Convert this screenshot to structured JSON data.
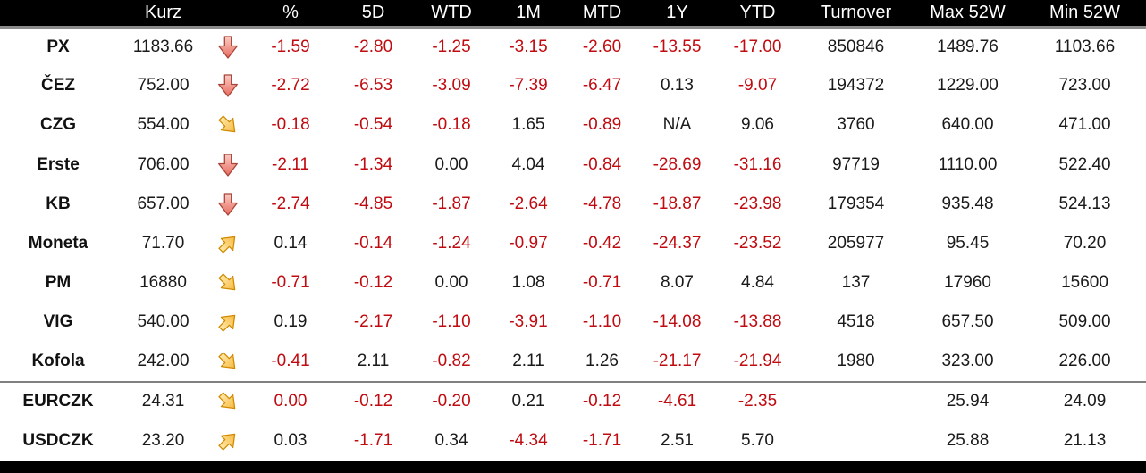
{
  "colors": {
    "negative_text": "#c00b10",
    "positive_text": "#1a1a1a",
    "header_bg": "#000000",
    "header_text": "#ffffff",
    "separator_gray": "#808080",
    "arrow_red_fill": "#ef7b6f",
    "arrow_red_stroke": "#a94438",
    "arrow_yellow_fill": "#f9c04f",
    "arrow_yellow_stroke": "#d08a00"
  },
  "chart_data": {
    "type": "table",
    "title": "Czech market quotes table",
    "columns": [
      "",
      "Kurz",
      "",
      "%",
      "5D",
      "WTD",
      "1M",
      "MTD",
      "1Y",
      "YTD",
      "Turnover",
      "Max 52W",
      "Min 52W"
    ],
    "value_keys": [
      "pct",
      "d5",
      "wtd",
      "m1",
      "mtd",
      "y1",
      "ytd",
      "turnover",
      "max52w",
      "min52w"
    ],
    "rows": [
      {
        "name": "PX",
        "kurz": "1183.66",
        "arrow": "down",
        "values": [
          {
            "v": "-1.59",
            "neg": true
          },
          {
            "v": "-2.80",
            "neg": true
          },
          {
            "v": "-1.25",
            "neg": true
          },
          {
            "v": "-3.15",
            "neg": true
          },
          {
            "v": "-2.60",
            "neg": true
          },
          {
            "v": "-13.55",
            "neg": true
          },
          {
            "v": "-17.00",
            "neg": true
          },
          {
            "v": "850846",
            "neg": false
          },
          {
            "v": "1489.76",
            "neg": false
          },
          {
            "v": "1103.66",
            "neg": false
          }
        ]
      },
      {
        "name": "ČEZ",
        "kurz": "752.00",
        "arrow": "down",
        "values": [
          {
            "v": "-2.72",
            "neg": true
          },
          {
            "v": "-6.53",
            "neg": true
          },
          {
            "v": "-3.09",
            "neg": true
          },
          {
            "v": "-7.39",
            "neg": true
          },
          {
            "v": "-6.47",
            "neg": true
          },
          {
            "v": "0.13",
            "neg": false
          },
          {
            "v": "-9.07",
            "neg": true
          },
          {
            "v": "194372",
            "neg": false
          },
          {
            "v": "1229.00",
            "neg": false
          },
          {
            "v": "723.00",
            "neg": false
          }
        ]
      },
      {
        "name": "CZG",
        "kurz": "554.00",
        "arrow": "down-right",
        "values": [
          {
            "v": "-0.18",
            "neg": true
          },
          {
            "v": "-0.54",
            "neg": true
          },
          {
            "v": "-0.18",
            "neg": true
          },
          {
            "v": "1.65",
            "neg": false
          },
          {
            "v": "-0.89",
            "neg": true
          },
          {
            "v": "N/A",
            "neg": false
          },
          {
            "v": "9.06",
            "neg": false
          },
          {
            "v": "3760",
            "neg": false
          },
          {
            "v": "640.00",
            "neg": false
          },
          {
            "v": "471.00",
            "neg": false
          }
        ]
      },
      {
        "name": "Erste",
        "kurz": "706.00",
        "arrow": "down",
        "values": [
          {
            "v": "-2.11",
            "neg": true
          },
          {
            "v": "-1.34",
            "neg": true
          },
          {
            "v": "0.00",
            "neg": false
          },
          {
            "v": "4.04",
            "neg": false
          },
          {
            "v": "-0.84",
            "neg": true
          },
          {
            "v": "-28.69",
            "neg": true
          },
          {
            "v": "-31.16",
            "neg": true
          },
          {
            "v": "97719",
            "neg": false
          },
          {
            "v": "1110.00",
            "neg": false
          },
          {
            "v": "522.40",
            "neg": false
          }
        ]
      },
      {
        "name": "KB",
        "kurz": "657.00",
        "arrow": "down",
        "values": [
          {
            "v": "-2.74",
            "neg": true
          },
          {
            "v": "-4.85",
            "neg": true
          },
          {
            "v": "-1.87",
            "neg": true
          },
          {
            "v": "-2.64",
            "neg": true
          },
          {
            "v": "-4.78",
            "neg": true
          },
          {
            "v": "-18.87",
            "neg": true
          },
          {
            "v": "-23.98",
            "neg": true
          },
          {
            "v": "179354",
            "neg": false
          },
          {
            "v": "935.48",
            "neg": false
          },
          {
            "v": "524.13",
            "neg": false
          }
        ]
      },
      {
        "name": "Moneta",
        "kurz": "71.70",
        "arrow": "up-right",
        "values": [
          {
            "v": "0.14",
            "neg": false
          },
          {
            "v": "-0.14",
            "neg": true
          },
          {
            "v": "-1.24",
            "neg": true
          },
          {
            "v": "-0.97",
            "neg": true
          },
          {
            "v": "-0.42",
            "neg": true
          },
          {
            "v": "-24.37",
            "neg": true
          },
          {
            "v": "-23.52",
            "neg": true
          },
          {
            "v": "205977",
            "neg": false
          },
          {
            "v": "95.45",
            "neg": false
          },
          {
            "v": "70.20",
            "neg": false
          }
        ]
      },
      {
        "name": "PM",
        "kurz": "16880",
        "arrow": "down-right",
        "values": [
          {
            "v": "-0.71",
            "neg": true
          },
          {
            "v": "-0.12",
            "neg": true
          },
          {
            "v": "0.00",
            "neg": false
          },
          {
            "v": "1.08",
            "neg": false
          },
          {
            "v": "-0.71",
            "neg": true
          },
          {
            "v": "8.07",
            "neg": false
          },
          {
            "v": "4.84",
            "neg": false
          },
          {
            "v": "137",
            "neg": false
          },
          {
            "v": "17960",
            "neg": false
          },
          {
            "v": "15600",
            "neg": false
          }
        ]
      },
      {
        "name": "VIG",
        "kurz": "540.00",
        "arrow": "up-right",
        "values": [
          {
            "v": "0.19",
            "neg": false
          },
          {
            "v": "-2.17",
            "neg": true
          },
          {
            "v": "-1.10",
            "neg": true
          },
          {
            "v": "-3.91",
            "neg": true
          },
          {
            "v": "-1.10",
            "neg": true
          },
          {
            "v": "-14.08",
            "neg": true
          },
          {
            "v": "-13.88",
            "neg": true
          },
          {
            "v": "4518",
            "neg": false
          },
          {
            "v": "657.50",
            "neg": false
          },
          {
            "v": "509.00",
            "neg": false
          }
        ]
      },
      {
        "name": "Kofola",
        "kurz": "242.00",
        "arrow": "down-right",
        "values": [
          {
            "v": "-0.41",
            "neg": true
          },
          {
            "v": "2.11",
            "neg": false
          },
          {
            "v": "-0.82",
            "neg": true
          },
          {
            "v": "2.11",
            "neg": false
          },
          {
            "v": "1.26",
            "neg": false
          },
          {
            "v": "-21.17",
            "neg": true
          },
          {
            "v": "-21.94",
            "neg": true
          },
          {
            "v": "1980",
            "neg": false
          },
          {
            "v": "323.00",
            "neg": false
          },
          {
            "v": "226.00",
            "neg": false
          }
        ]
      },
      {
        "name": "EURCZK",
        "kurz": "24.31",
        "arrow": "down-right",
        "group": "fx",
        "values": [
          {
            "v": "0.00",
            "neg": true
          },
          {
            "v": "-0.12",
            "neg": true
          },
          {
            "v": "-0.20",
            "neg": true
          },
          {
            "v": "0.21",
            "neg": false
          },
          {
            "v": "-0.12",
            "neg": true
          },
          {
            "v": "-4.61",
            "neg": true
          },
          {
            "v": "-2.35",
            "neg": true
          },
          {
            "v": "",
            "neg": false
          },
          {
            "v": "25.94",
            "neg": false
          },
          {
            "v": "24.09",
            "neg": false
          }
        ]
      },
      {
        "name": "USDCZK",
        "kurz": "23.20",
        "arrow": "up-right",
        "group": "fx",
        "values": [
          {
            "v": "0.03",
            "neg": false
          },
          {
            "v": "-1.71",
            "neg": true
          },
          {
            "v": "0.34",
            "neg": false
          },
          {
            "v": "-4.34",
            "neg": true
          },
          {
            "v": "-1.71",
            "neg": true
          },
          {
            "v": "2.51",
            "neg": false
          },
          {
            "v": "5.70",
            "neg": false
          },
          {
            "v": "",
            "neg": false
          },
          {
            "v": "25.88",
            "neg": false
          },
          {
            "v": "21.13",
            "neg": false
          }
        ]
      }
    ]
  }
}
